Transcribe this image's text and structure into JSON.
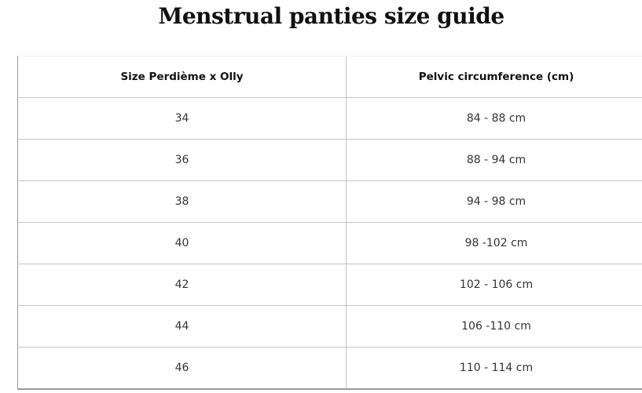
{
  "title": "Menstrual panties size guide",
  "table": {
    "headers": [
      "Size Perdième x Olly",
      "Pelvic circumference (cm)"
    ],
    "rows": [
      [
        "34",
        "84 - 88 cm"
      ],
      [
        "36",
        "88 - 94 cm"
      ],
      [
        "38",
        "94 - 98 cm"
      ],
      [
        "40",
        "98 -102 cm"
      ],
      [
        "42",
        "102 - 106 cm"
      ],
      [
        "44",
        "106 -110 cm"
      ],
      [
        "46",
        "110 - 114 cm"
      ]
    ]
  }
}
